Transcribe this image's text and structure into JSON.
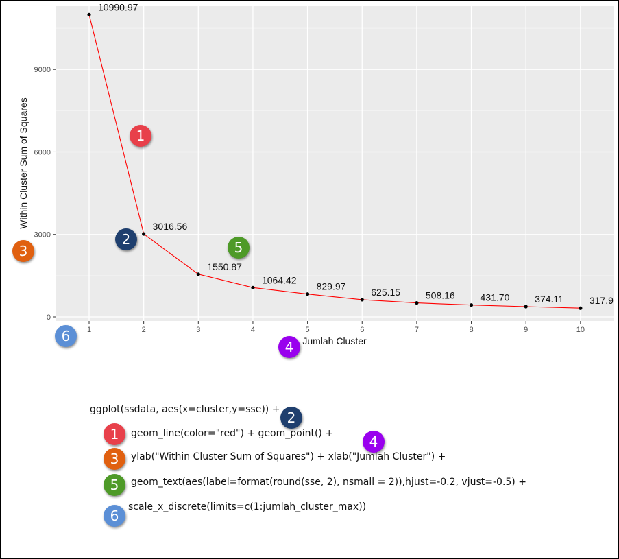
{
  "chart_data": {
    "type": "line",
    "x": [
      1,
      2,
      3,
      4,
      5,
      6,
      7,
      8,
      9,
      10
    ],
    "values": [
      10990.97,
      3016.56,
      1550.87,
      1064.42,
      829.97,
      625.15,
      508.16,
      431.7,
      374.11,
      317.9
    ],
    "point_labels": [
      "10990.97",
      "3016.56",
      "1550.87",
      "1064.42",
      "829.97",
      "625.15",
      "508.16",
      "431.70",
      "374.11",
      "317.9"
    ],
    "xticks": [
      "1",
      "2",
      "3",
      "4",
      "5",
      "6",
      "7",
      "8",
      "9",
      "10"
    ],
    "yticks": [
      0,
      3000,
      6000,
      9000
    ],
    "ytick_labels": [
      "0",
      "3000",
      "6000",
      "9000"
    ],
    "ylim": [
      -150,
      11300
    ],
    "xlabel": "Jumlah Cluster",
    "ylabel": "Within Cluster Sum of Squares",
    "grid": true,
    "line_color": "#ff0000",
    "point_color": "#000000",
    "panel_color": "#ebebeb"
  },
  "badge_colors": {
    "1": "#e8404a",
    "2": "#1f3f6e",
    "3": "#e06010",
    "4": "#9900ee",
    "5": "#4e9a28",
    "6": "#5b8fd6"
  },
  "plot_badges": [
    {
      "label": "1",
      "color_key": "1"
    },
    {
      "label": "2",
      "color_key": "2"
    },
    {
      "label": "3",
      "color_key": "3"
    },
    {
      "label": "4",
      "color_key": "4"
    },
    {
      "label": "5",
      "color_key": "5"
    },
    {
      "label": "6",
      "color_key": "6"
    }
  ],
  "code": {
    "lines": [
      "ggplot(ssdata, aes(x=cluster,y=sse)) +",
      "geom_line(color=\"red\") + geom_point() +",
      "ylab(\"Within Cluster Sum of Squares\") + xlab(\"Jumlah Cluster\") +",
      "geom_text(aes(label=format(round(sse, 2), nsmall = 2)),hjust=-0.2, vjust=-0.5) +",
      "scale_x_discrete(limits=c(1:jumlah_cluster_max))"
    ],
    "badges": [
      "2",
      "1",
      "4",
      "3",
      "5",
      "6"
    ]
  }
}
